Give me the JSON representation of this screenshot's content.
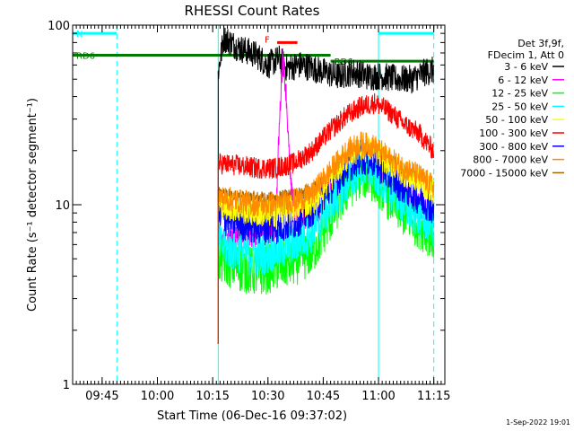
{
  "chart_data": {
    "type": "line",
    "title": "RHESSI Count Rates",
    "xlabel": "Start Time (06-Dec-16 09:37:02)",
    "ylabel": "Count Rate (s⁻¹ detector segment⁻¹)",
    "y_scale": "log",
    "ylim": [
      1,
      100
    ],
    "xlim_minutes_after_0937": [
      0,
      101
    ],
    "x_ticks": [
      {
        "label": "09:45",
        "t": 8
      },
      {
        "label": "10:00",
        "t": 23
      },
      {
        "label": "10:15",
        "t": 38
      },
      {
        "label": "10:30",
        "t": 53
      },
      {
        "label": "10:45",
        "t": 68
      },
      {
        "label": "11:00",
        "t": 83
      },
      {
        "label": "11:15",
        "t": 98
      }
    ],
    "y_ticks": [
      {
        "label": "1",
        "v": 1
      },
      {
        "label": "10",
        "v": 10
      },
      {
        "label": "100",
        "v": 100
      }
    ],
    "legend": {
      "placement": "outside-right",
      "header": [
        "Det 3f,9f,",
        "FDecim 1, Att 0"
      ],
      "entries": [
        {
          "label": "3 - 6 keV",
          "color": "#000000"
        },
        {
          "label": "6 - 12 keV",
          "color": "#ff00ff"
        },
        {
          "label": "12 - 25 keV",
          "color": "#00ff00"
        },
        {
          "label": "25 - 50 keV",
          "color": "#00ffff"
        },
        {
          "label": "50 - 100 keV",
          "color": "#ffff00"
        },
        {
          "label": "100 - 300 keV",
          "color": "#ff0000"
        },
        {
          "label": "300 - 800 keV",
          "color": "#0000ff"
        },
        {
          "label": "800 - 7000 keV",
          "color": "#ff8c00"
        },
        {
          "label": "7000 - 15000 keV",
          "color": "#a06400"
        }
      ]
    },
    "series": [
      {
        "name": "3 - 6 keV",
        "color": "#000000",
        "noise": 0.08,
        "points": [
          [
            39.5,
            55
          ],
          [
            41,
            85
          ],
          [
            45,
            75
          ],
          [
            50,
            68
          ],
          [
            53,
            60
          ],
          [
            56,
            65
          ],
          [
            58,
            58
          ],
          [
            62,
            60
          ],
          [
            65,
            58
          ],
          [
            68,
            55
          ],
          [
            72,
            52
          ],
          [
            76,
            55
          ],
          [
            80,
            52
          ],
          [
            84,
            52
          ],
          [
            88,
            50
          ],
          [
            92,
            50
          ],
          [
            96,
            55
          ],
          [
            98,
            56
          ]
        ]
      },
      {
        "name": "6 - 12 keV",
        "color": "#ff00ff",
        "noise": 0.07,
        "points": [
          [
            39.5,
            6.5
          ],
          [
            45,
            6.5
          ],
          [
            52,
            7
          ],
          [
            55,
            7.2
          ],
          [
            56,
            25
          ],
          [
            57,
            70
          ],
          [
            58,
            40
          ],
          [
            59,
            14
          ],
          [
            60,
            9
          ],
          [
            63,
            8.5
          ],
          [
            66,
            9
          ],
          [
            70,
            12
          ],
          [
            74,
            15
          ],
          [
            78,
            16
          ],
          [
            82,
            15
          ],
          [
            86,
            13
          ],
          [
            90,
            11
          ],
          [
            94,
            10
          ],
          [
            97,
            9
          ],
          [
            98,
            8
          ]
        ]
      },
      {
        "name": "12 - 25 keV",
        "color": "#00ff00",
        "noise": 0.14,
        "points": [
          [
            39.5,
            5
          ],
          [
            45,
            4.5
          ],
          [
            50,
            4.2
          ],
          [
            55,
            4.5
          ],
          [
            60,
            4.8
          ],
          [
            65,
            5.5
          ],
          [
            70,
            8.5
          ],
          [
            74,
            12
          ],
          [
            78,
            15
          ],
          [
            82,
            14
          ],
          [
            86,
            11
          ],
          [
            90,
            9
          ],
          [
            94,
            7.8
          ],
          [
            97,
            7
          ],
          [
            98,
            6.5
          ]
        ]
      },
      {
        "name": "25 - 50 keV",
        "color": "#00ffff",
        "noise": 0.12,
        "points": [
          [
            39.5,
            6
          ],
          [
            45,
            5.5
          ],
          [
            50,
            5.2
          ],
          [
            55,
            5.5
          ],
          [
            60,
            6
          ],
          [
            65,
            7
          ],
          [
            70,
            10
          ],
          [
            74,
            13
          ],
          [
            78,
            16
          ],
          [
            82,
            15
          ],
          [
            86,
            12.5
          ],
          [
            90,
            10
          ],
          [
            94,
            8.5
          ],
          [
            97,
            8
          ],
          [
            98,
            7.5
          ]
        ]
      },
      {
        "name": "50 - 100 keV",
        "color": "#ffff00",
        "noise": 0.08,
        "points": [
          [
            39.5,
            10
          ],
          [
            45,
            9.5
          ],
          [
            50,
            9
          ],
          [
            55,
            9
          ],
          [
            60,
            9.5
          ],
          [
            65,
            10.5
          ],
          [
            70,
            14
          ],
          [
            74,
            18
          ],
          [
            78,
            21
          ],
          [
            82,
            20
          ],
          [
            86,
            17
          ],
          [
            90,
            15
          ],
          [
            94,
            13.5
          ],
          [
            97,
            12.5
          ],
          [
            98,
            12
          ]
        ]
      },
      {
        "name": "100 - 300 keV",
        "color": "#ff0000",
        "noise": 0.06,
        "points": [
          [
            39.5,
            17
          ],
          [
            45,
            16.5
          ],
          [
            50,
            16
          ],
          [
            55,
            16
          ],
          [
            60,
            17
          ],
          [
            65,
            20
          ],
          [
            70,
            26
          ],
          [
            74,
            31
          ],
          [
            78,
            35
          ],
          [
            82,
            37
          ],
          [
            86,
            33
          ],
          [
            90,
            28
          ],
          [
            94,
            25
          ],
          [
            97,
            21
          ],
          [
            98,
            20
          ]
        ]
      },
      {
        "name": "300 - 800 keV",
        "color": "#0000ff",
        "noise": 0.1,
        "points": [
          [
            39.5,
            8.5
          ],
          [
            45,
            8
          ],
          [
            50,
            7.5
          ],
          [
            55,
            7.5
          ],
          [
            60,
            8
          ],
          [
            65,
            9.5
          ],
          [
            70,
            12.5
          ],
          [
            74,
            16
          ],
          [
            78,
            18.5
          ],
          [
            82,
            17.5
          ],
          [
            86,
            14.5
          ],
          [
            90,
            12.5
          ],
          [
            94,
            11
          ],
          [
            97,
            10
          ],
          [
            98,
            9
          ]
        ]
      },
      {
        "name": "800 - 7000 keV",
        "color": "#ff8c00",
        "noise": 0.07,
        "points": [
          [
            39.5,
            11
          ],
          [
            45,
            10.5
          ],
          [
            50,
            10
          ],
          [
            55,
            10
          ],
          [
            60,
            10.5
          ],
          [
            65,
            11.5
          ],
          [
            70,
            15.5
          ],
          [
            74,
            19.5
          ],
          [
            78,
            22
          ],
          [
            82,
            21
          ],
          [
            86,
            18
          ],
          [
            90,
            16
          ],
          [
            94,
            14.5
          ],
          [
            97,
            13
          ],
          [
            98,
            12.5
          ]
        ]
      },
      {
        "name": "7000 - 15000 keV",
        "color": "#a06400",
        "noise": 0.04,
        "points": [
          [
            39.5,
            11.5
          ],
          [
            45,
            11
          ],
          [
            55,
            10.8
          ],
          [
            65,
            12
          ],
          [
            75,
            18
          ],
          [
            82,
            20
          ],
          [
            90,
            15.5
          ],
          [
            98,
            12.5
          ]
        ]
      }
    ],
    "flags": [
      {
        "label": "N",
        "color": "#00ffff",
        "t_start": 0,
        "t_end": 12,
        "level": 90
      },
      {
        "label": "",
        "color": "#00ffff",
        "t_start": 83,
        "t_end": 98,
        "level": 90
      },
      {
        "label": "F",
        "color": "#ff0000",
        "t_start": 55.5,
        "t_end": 61,
        "level": 80
      },
      {
        "label": "RD6",
        "color": "#007a00",
        "t_start": 0,
        "t_end": 70,
        "level": 68
      },
      {
        "label": "RD6",
        "color": "#007a00",
        "t_start": 70,
        "t_end": 98,
        "level": 63
      }
    ],
    "vlines": [
      {
        "t": 12,
        "color": "#00ffff",
        "dashed": true
      },
      {
        "t": 83,
        "color": "#00ffff",
        "dashed": false
      },
      {
        "t": 98,
        "color": "#00ffff",
        "dashed": true
      },
      {
        "t": 39.5,
        "color": "#00ffff",
        "dashed": false
      }
    ]
  },
  "footer": {
    "timestamp": "1-Sep-2022 19:01"
  }
}
